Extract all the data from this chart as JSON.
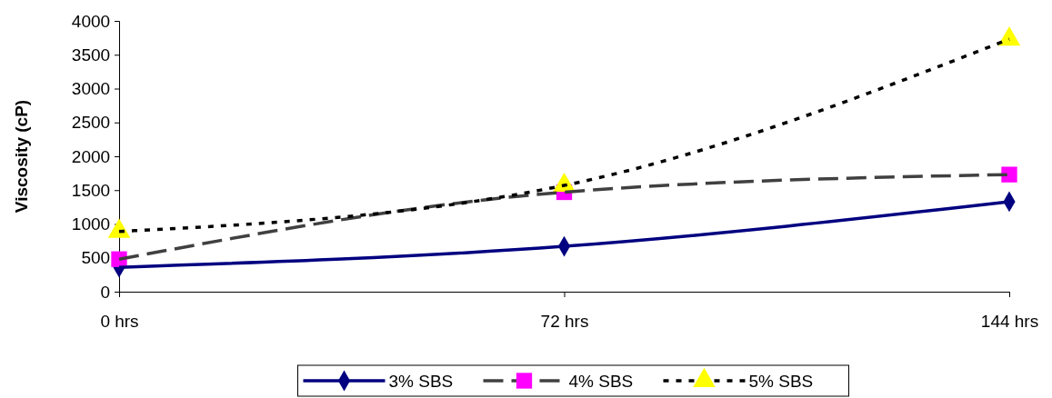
{
  "chart_data": {
    "type": "line",
    "ylabel": "Viscosity (cP)",
    "categories": [
      "0 hrs",
      "72 hrs",
      "144 hrs"
    ],
    "ylim": [
      0,
      4000
    ],
    "yticks": [
      0,
      500,
      1000,
      1500,
      2000,
      2500,
      3000,
      3500,
      4000
    ],
    "grid": false,
    "legend": "bottom",
    "series": [
      {
        "name": "3% SBS",
        "color": "#000080",
        "colors": [
          "#000080",
          "#000080",
          "#000080"
        ],
        "marker": "diamond",
        "line_style": "solid",
        "values": [
          360,
          670,
          1330
        ]
      },
      {
        "name": "4% SBS",
        "color": "#404040",
        "colors": [
          "#ff00ff",
          "#ff00ff",
          "#ff00ff"
        ],
        "marker": "square",
        "line_style": "dashed",
        "values": [
          480,
          1470,
          1730
        ]
      },
      {
        "name": "5% SBS",
        "color": "#000000",
        "colors": [
          "#ffff00",
          "#ffff00",
          "#ffff00"
        ],
        "marker": "triangle",
        "line_style": "dotted",
        "values": [
          890,
          1570,
          3730
        ]
      }
    ]
  }
}
